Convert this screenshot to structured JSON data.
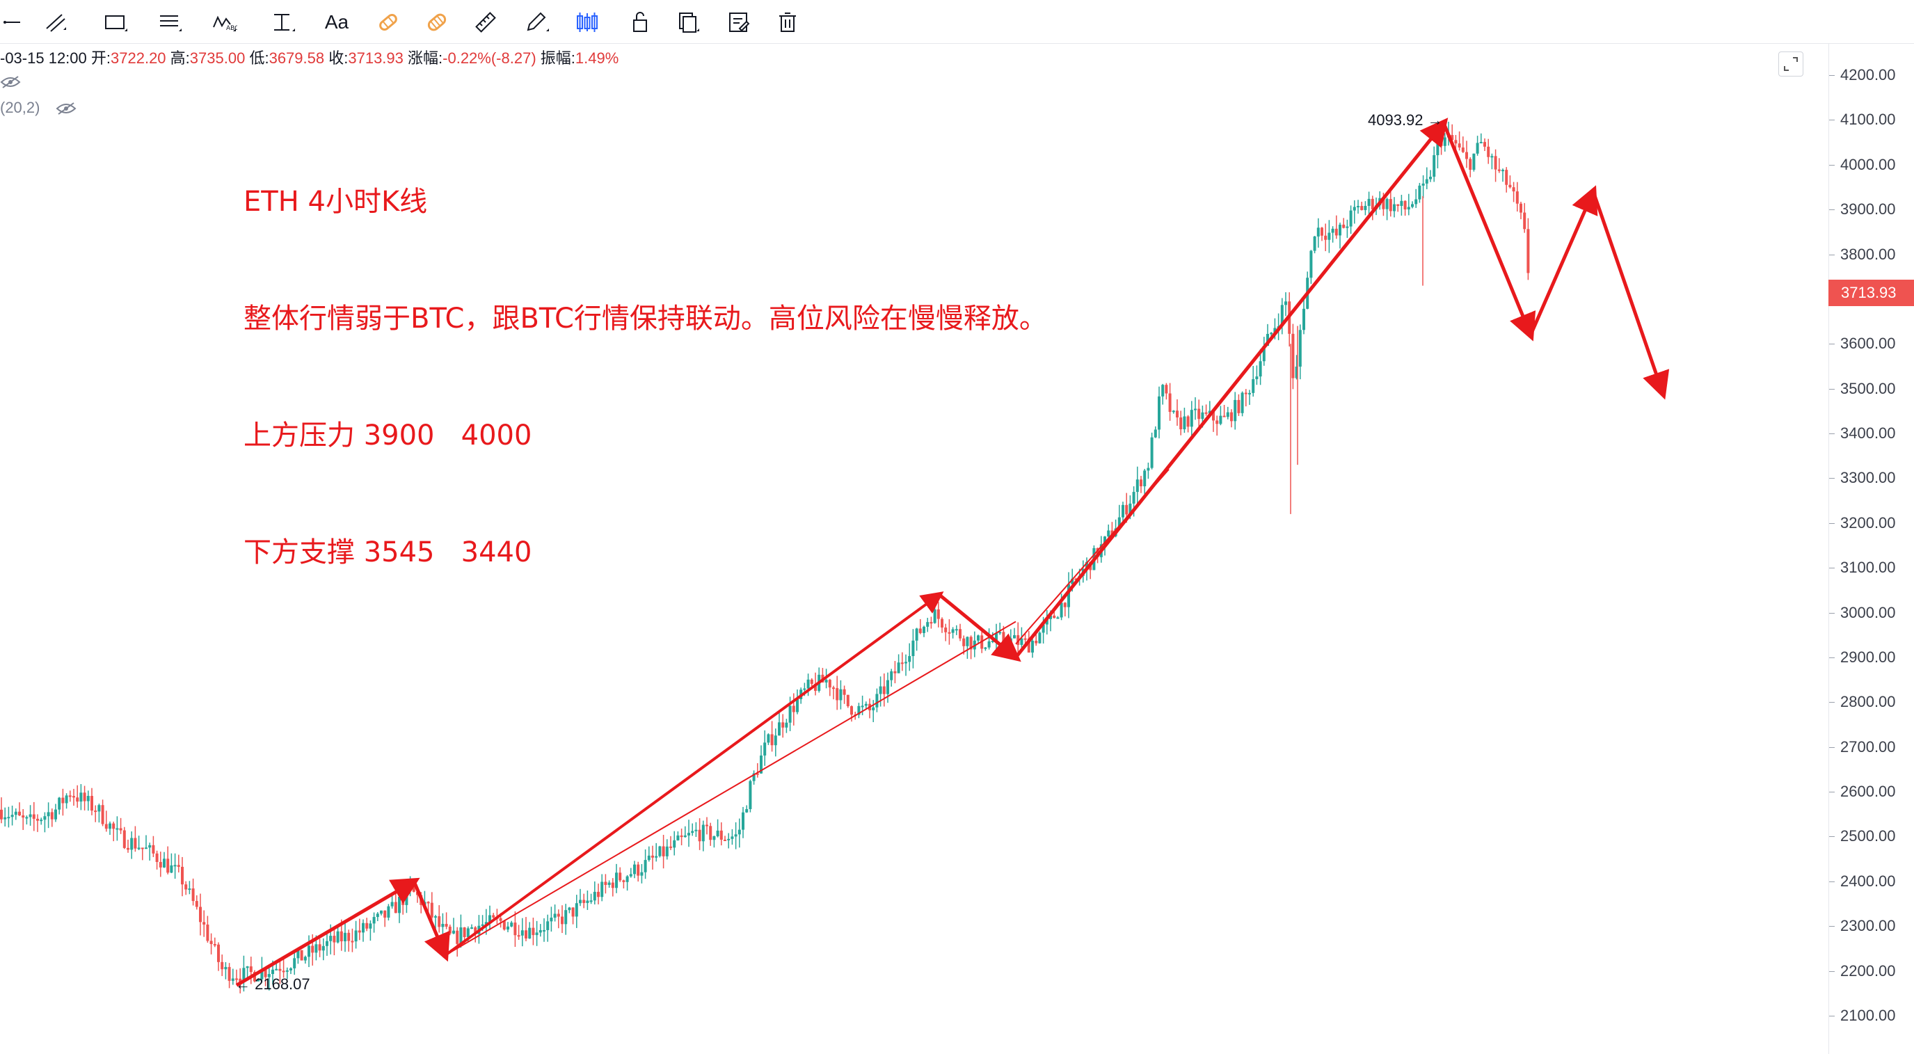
{
  "toolbar": {
    "tools": [
      {
        "name": "ray-line-tool",
        "icon": "horizontal-ray-icon"
      },
      {
        "name": "trend-channel-tool",
        "icon": "parallel-channel-icon"
      },
      {
        "name": "rectangle-tool",
        "icon": "rectangle-icon"
      },
      {
        "name": "fib-retracement-tool",
        "icon": "fib-lines-icon"
      },
      {
        "name": "wave-pattern-tool",
        "icon": "wave-pattern-icon"
      },
      {
        "name": "range-measure-tool",
        "icon": "price-range-icon"
      },
      {
        "name": "text-tool",
        "icon": "text-icon",
        "label": "Aa"
      },
      {
        "name": "magnet-tool",
        "icon": "magnet-icon"
      },
      {
        "name": "magnet-strong-tool",
        "icon": "magnet-strong-icon"
      },
      {
        "name": "ruler-tool",
        "icon": "ruler-icon"
      },
      {
        "name": "pencil-tool",
        "icon": "pencil-icon"
      },
      {
        "name": "candle-style-tool",
        "icon": "candlesticks-icon"
      },
      {
        "name": "lock-tool",
        "icon": "lock-icon"
      },
      {
        "name": "copy-tool",
        "icon": "copy-icon"
      },
      {
        "name": "edit-tool",
        "icon": "edit-icon"
      },
      {
        "name": "delete-tool",
        "icon": "trash-icon"
      }
    ]
  },
  "ohlc": {
    "date": "-03-15 12:00",
    "open_label": "开:",
    "open": "3722.20",
    "high_label": "高:",
    "high": "3735.00",
    "low_label": "低:",
    "low": "3679.58",
    "close_label": "收:",
    "close": "3713.93",
    "change_label": "涨幅:",
    "change": "-0.22%(-8.27)",
    "amplitude_label": "振幅:",
    "amplitude": "1.49%"
  },
  "indicator": {
    "label": "(20,2)"
  },
  "annotation": {
    "line1": "ETH 4小时K线",
    "line2": "整体行情弱于BTC，跟BTC行情保持联动。高位风险在慢慢释放。",
    "line3": "上方压力 3900   4000",
    "line4": "下方支撑 3545   3440"
  },
  "price_axis": {
    "ticks": [
      "4200.00",
      "4100.00",
      "4000.00",
      "3900.00",
      "3800.00",
      "3700.00",
      "3600.00",
      "3500.00",
      "3400.00",
      "3300.00",
      "3200.00",
      "3100.00",
      "3000.00",
      "2900.00",
      "2800.00",
      "2700.00",
      "2600.00",
      "2500.00",
      "2400.00",
      "2300.00",
      "2200.00",
      "2100.00"
    ],
    "current_price": "3713.93"
  },
  "callouts": {
    "high": "4093.92 →",
    "low": "← 2168.07"
  },
  "colors": {
    "up": "#26a69a",
    "down": "#ef5350",
    "annotation": "#e8191c",
    "toolbar_accent": "#f0a24a",
    "active_tool": "#2962ff"
  },
  "chart_data": {
    "type": "candlestick",
    "title": "",
    "ylim": [
      2050,
      4250
    ],
    "price_path": [
      [
        0,
        2560
      ],
      [
        40,
        2530
      ],
      [
        80,
        2560
      ],
      [
        100,
        2600
      ],
      [
        140,
        2560
      ],
      [
        170,
        2500
      ],
      [
        200,
        2480
      ],
      [
        230,
        2450
      ],
      [
        260,
        2410
      ],
      [
        290,
        2310
      ],
      [
        320,
        2200
      ],
      [
        350,
        2190
      ],
      [
        380,
        2200
      ],
      [
        420,
        2220
      ],
      [
        470,
        2260
      ],
      [
        520,
        2290
      ],
      [
        560,
        2330
      ],
      [
        590,
        2380
      ],
      [
        610,
        2350
      ],
      [
        630,
        2300
      ],
      [
        650,
        2270
      ],
      [
        680,
        2300
      ],
      [
        720,
        2310
      ],
      [
        760,
        2290
      ],
      [
        800,
        2310
      ],
      [
        840,
        2350
      ],
      [
        880,
        2400
      ],
      [
        920,
        2430
      ],
      [
        960,
        2470
      ],
      [
        1000,
        2510
      ],
      [
        1040,
        2500
      ],
      [
        1060,
        2500
      ],
      [
        1080,
        2620
      ],
      [
        1100,
        2700
      ],
      [
        1130,
        2770
      ],
      [
        1160,
        2830
      ],
      [
        1190,
        2850
      ],
      [
        1220,
        2790
      ],
      [
        1250,
        2780
      ],
      [
        1280,
        2850
      ],
      [
        1310,
        2930
      ],
      [
        1340,
        3000
      ],
      [
        1370,
        2960
      ],
      [
        1400,
        2930
      ],
      [
        1440,
        2940
      ],
      [
        1480,
        2930
      ],
      [
        1510,
        2980
      ],
      [
        1550,
        3080
      ],
      [
        1590,
        3160
      ],
      [
        1620,
        3240
      ],
      [
        1650,
        3330
      ],
      [
        1670,
        3500
      ],
      [
        1690,
        3420
      ],
      [
        1720,
        3440
      ],
      [
        1760,
        3430
      ],
      [
        1790,
        3480
      ],
      [
        1820,
        3600
      ],
      [
        1850,
        3700
      ],
      [
        1860,
        3480
      ],
      [
        1870,
        3650
      ],
      [
        1890,
        3860
      ],
      [
        1920,
        3840
      ],
      [
        1950,
        3900
      ],
      [
        1980,
        3920
      ],
      [
        2020,
        3900
      ],
      [
        2050,
        3950
      ],
      [
        2070,
        4060
      ],
      [
        2090,
        4050
      ],
      [
        2110,
        4000
      ],
      [
        2130,
        4050
      ],
      [
        2150,
        3990
      ],
      [
        2170,
        3950
      ],
      [
        2190,
        3860
      ],
      [
        2200,
        3710
      ]
    ],
    "extremes": {
      "high": 4093.92,
      "low": 2168.07
    },
    "last": {
      "open": 3722.2,
      "high": 3735.0,
      "low": 3679.58,
      "close": 3713.93
    },
    "drawn_arrows": [
      [
        [
          2168,
          2215
        ],
        [
          2400,
          2400
        ]
      ],
      [
        [
          2400,
          2400
        ],
        [
          2235,
          2235
        ]
      ],
      [
        [
          2235,
          2235
        ],
        [
          3040,
          3040
        ]
      ],
      [
        [
          3040,
          3040
        ],
        [
          2900,
          2900
        ]
      ],
      [
        [
          2900,
          2900
        ],
        [
          4093,
          4093
        ]
      ],
      [
        [
          4093,
          4093
        ],
        [
          3620,
          3620
        ]
      ],
      [
        [
          3620,
          3620
        ],
        [
          3940,
          3940
        ]
      ],
      [
        [
          3940,
          3940
        ],
        [
          3490,
          3490
        ]
      ]
    ]
  }
}
